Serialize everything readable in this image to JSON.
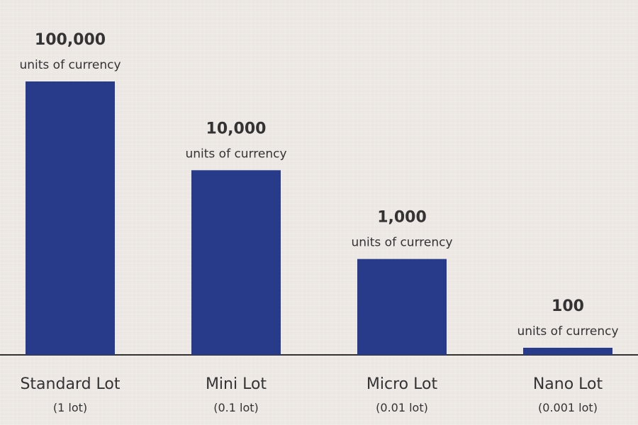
{
  "chart_data": {
    "type": "bar",
    "categories": [
      "Standard Lot",
      "Mini Lot",
      "Micro Lot",
      "Nano Lot"
    ],
    "sublabels": [
      "(1 lot)",
      "(0.1 lot)",
      "(0.01 lot)",
      "(0.001 lot)"
    ],
    "values": [
      100000,
      10000,
      1000,
      100
    ],
    "value_labels": [
      "100,000",
      "10,000",
      "1,000",
      "100"
    ],
    "unit_label": "units of currency",
    "scale": "log",
    "grid": false,
    "legend": "none",
    "colors": {
      "bar": "#283b8b",
      "axis": "#333333",
      "text": "#333333",
      "background": "#ece7e3"
    }
  }
}
